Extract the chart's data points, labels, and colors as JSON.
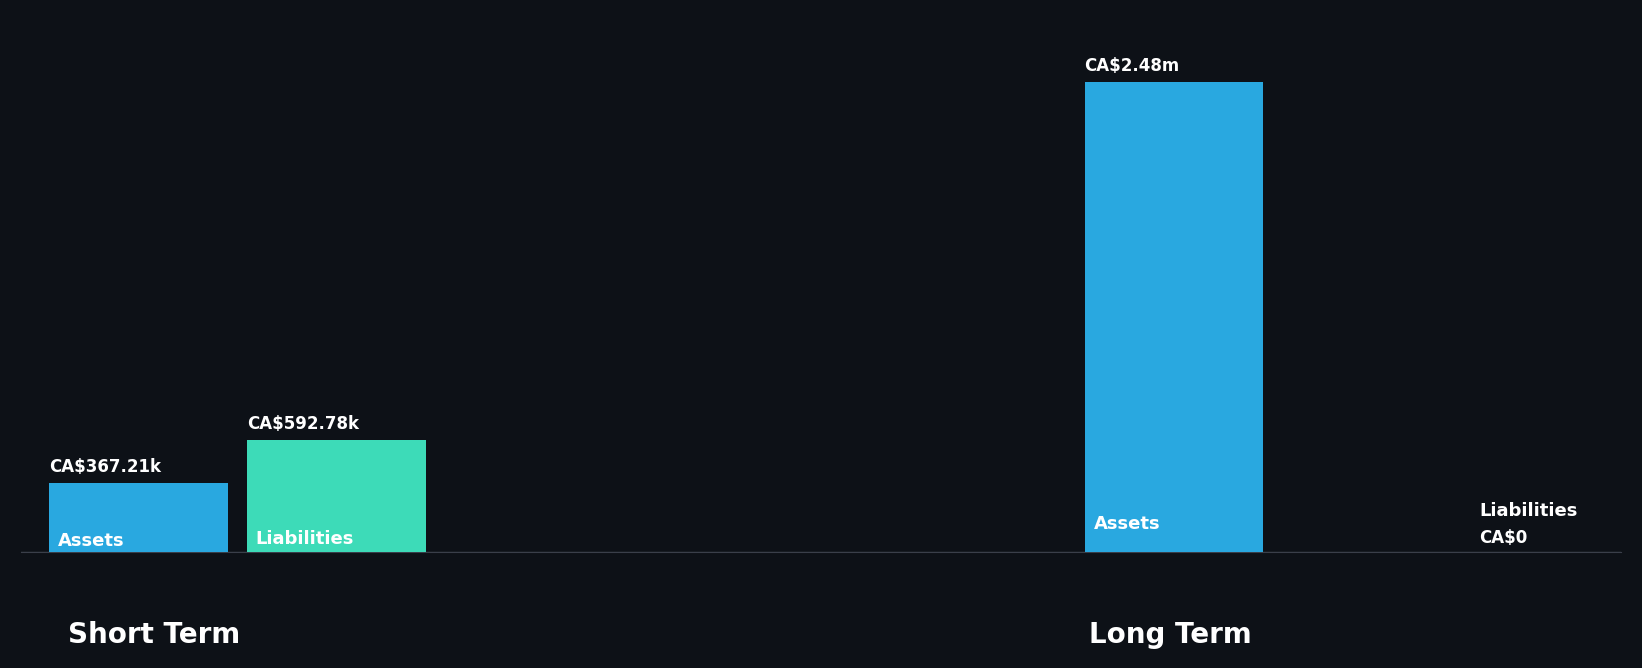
{
  "background_color": "#0d1117",
  "groups": [
    "Short Term",
    "Long Term"
  ],
  "categories": [
    "Assets",
    "Liabilities"
  ],
  "values": {
    "Short Term": {
      "Assets": 367210,
      "Liabilities": 592780
    },
    "Long Term": {
      "Assets": 2480000,
      "Liabilities": 0
    }
  },
  "labels": {
    "Short Term": {
      "Assets": "CA$367.21k",
      "Liabilities": "CA$592.78k"
    },
    "Long Term": {
      "Assets": "CA$2.48m",
      "Liabilities": "CA$0"
    }
  },
  "bar_colors": {
    "Assets": "#29a8e0",
    "Liabilities": "#3ddbb8"
  },
  "text_color": "#ffffff",
  "label_color_inside": "#ffffff",
  "group_label_color": "#ffffff",
  "value_label_color": "#ffffff",
  "group_fontsize": 20,
  "bar_label_fontsize": 13,
  "value_label_fontsize": 12,
  "bar_width": 0.38,
  "ylim": [
    0,
    2800000
  ]
}
